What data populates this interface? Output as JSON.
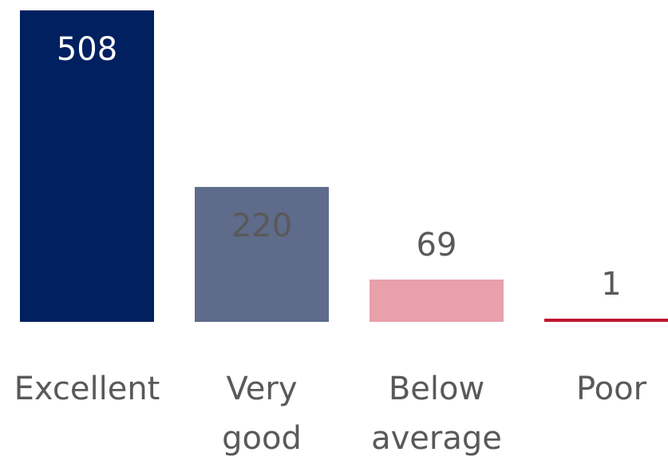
{
  "chart_data": {
    "type": "bar",
    "categories": [
      "Excellent",
      "Very good",
      "Below average",
      "Poor"
    ],
    "category_lines": [
      [
        "Excellent"
      ],
      [
        "Very",
        "good"
      ],
      [
        "Below",
        "average"
      ],
      [
        "Poor"
      ]
    ],
    "values": [
      508,
      220,
      69,
      1
    ],
    "colors": [
      "#002060",
      "#5e6b8a",
      "#e8a0ab",
      "#c0152f"
    ],
    "value_label_colors": [
      "#ffffff",
      "#595959",
      "#595959",
      "#595959"
    ],
    "ylim": [
      0,
      508
    ],
    "grid": false,
    "legend": "none"
  }
}
